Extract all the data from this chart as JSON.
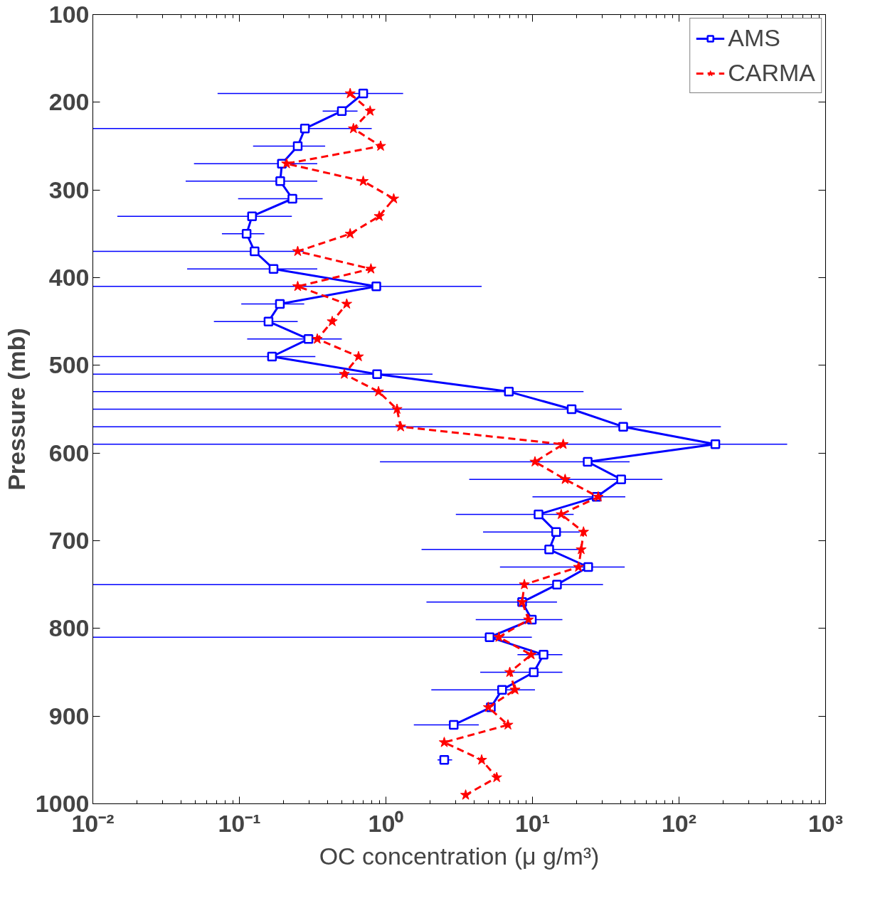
{
  "chart_data": {
    "type": "line",
    "xlabel": "OC concentration (μ g/m³)",
    "ylabel": "Pressure (mb)",
    "log": "x",
    "xlim": [
      0.01,
      1000
    ],
    "ylim": [
      1000,
      100
    ],
    "xticks": [
      {
        "value": 0.01,
        "label": "10⁻²"
      },
      {
        "value": 0.1,
        "label": "10⁻¹"
      },
      {
        "value": 1,
        "label": "10⁰"
      },
      {
        "value": 10,
        "label": "10¹"
      },
      {
        "value": 100,
        "label": "10²"
      },
      {
        "value": 1000,
        "label": "10³"
      }
    ],
    "yticks": [
      100,
      200,
      300,
      400,
      500,
      600,
      700,
      800,
      900,
      1000
    ],
    "grid": false,
    "legend": "top right",
    "series": [
      {
        "name": "AMS",
        "color": "#0000ff",
        "marker": "square",
        "line_style": "solid",
        "x": [
          0.7,
          0.5,
          0.28,
          0.25,
          0.195,
          0.19,
          0.23,
          0.122,
          0.112,
          0.127,
          0.171,
          0.86,
          0.189,
          0.158,
          0.296,
          0.167,
          0.87,
          6.9,
          18.5,
          41.6,
          177,
          23.8,
          40.3,
          27.4,
          11.0,
          14.5,
          13.0,
          24.0,
          14.7,
          8.5,
          9.9,
          5.1,
          11.9,
          10.2,
          6.2,
          5.2,
          2.9,
          null,
          2.5,
          null,
          null
        ],
        "values": [
          190,
          210,
          230,
          250,
          270,
          290,
          310,
          330,
          350,
          370,
          390,
          410,
          430,
          450,
          470,
          490,
          510,
          530,
          550,
          570,
          590,
          610,
          630,
          650,
          670,
          690,
          710,
          730,
          750,
          770,
          790,
          810,
          830,
          850,
          870,
          890,
          910,
          null,
          950,
          null,
          null
        ],
        "xerrors": [
          [
            0.071,
            1.31
          ],
          [
            0.37,
            0.64
          ],
          [
            0.01,
            0.8
          ],
          [
            0.124,
            0.385
          ],
          [
            0.049,
            0.34
          ],
          [
            0.043,
            0.34
          ],
          [
            0.098,
            0.37
          ],
          [
            0.0147,
            0.228
          ],
          [
            0.076,
            0.148
          ],
          [
            0.01,
            0.274
          ],
          [
            0.044,
            0.34
          ],
          [
            0.01,
            4.5
          ],
          [
            0.103,
            0.277
          ],
          [
            0.067,
            0.25
          ],
          [
            0.113,
            0.5
          ],
          [
            0.01,
            0.33
          ],
          [
            0.01,
            2.08
          ],
          [
            0.01,
            22.3
          ],
          [
            0.01,
            40.7
          ],
          [
            0.01,
            193
          ],
          [
            0.01,
            547
          ],
          [
            0.91,
            46
          ],
          [
            3.7,
            77
          ],
          [
            10,
            43
          ],
          [
            3.0,
            19.1
          ],
          [
            4.6,
            21.0
          ],
          [
            1.75,
            20.8
          ],
          [
            6.0,
            42.6
          ],
          [
            0.01,
            30.3
          ],
          [
            1.89,
            14.7
          ],
          [
            4.1,
            16.0
          ],
          [
            0.01,
            9.9
          ],
          [
            7.9,
            16.0
          ],
          [
            4.4,
            16.0
          ],
          [
            2.04,
            10.4
          ],
          null,
          [
            1.55,
            4.3
          ],
          null,
          [
            2.25,
            2.83
          ],
          null,
          null
        ]
      },
      {
        "name": "CARMA",
        "color": "#ff0000",
        "marker": "star",
        "line_style": "dashed",
        "x": [
          0.57,
          0.78,
          0.6,
          0.92,
          0.21,
          0.7,
          1.13,
          0.9,
          0.57,
          0.25,
          0.79,
          0.25,
          0.54,
          0.43,
          0.34,
          0.65,
          0.52,
          0.89,
          1.19,
          1.26,
          16.2,
          10.4,
          16.7,
          28.1,
          15.7,
          22.3,
          21.5,
          20.6,
          8.8,
          8.5,
          9.4,
          5.9,
          9.8,
          7.0,
          7.6,
          5.0,
          6.8,
          2.5,
          4.5,
          5.7,
          3.5
        ],
        "values": [
          190,
          210,
          230,
          250,
          270,
          290,
          310,
          330,
          350,
          370,
          390,
          410,
          430,
          450,
          470,
          490,
          510,
          530,
          550,
          570,
          590,
          610,
          630,
          650,
          670,
          690,
          710,
          730,
          750,
          770,
          790,
          810,
          830,
          850,
          870,
          890,
          910,
          930,
          950,
          970,
          990
        ]
      }
    ]
  }
}
